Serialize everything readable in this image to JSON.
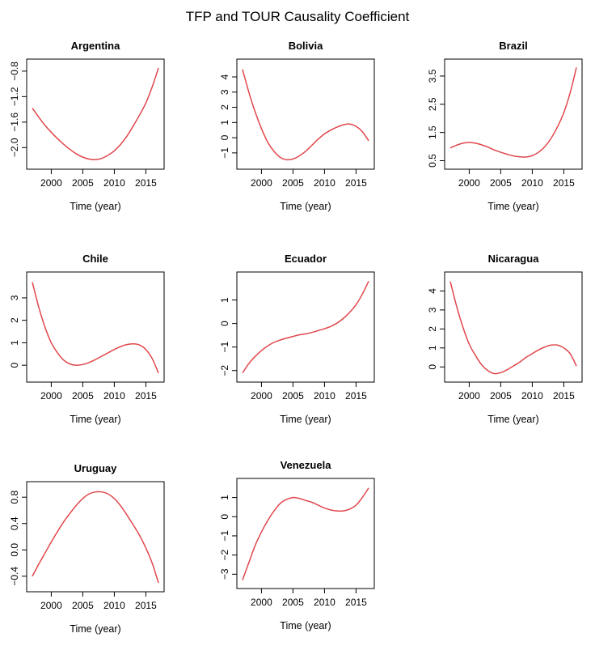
{
  "title": "TFP and TOUR Causality Coefficient",
  "colors": {
    "series": "#e0474c",
    "axis": "#000000"
  },
  "chart_data": [
    {
      "type": "line",
      "title": "Argentina",
      "xlabel": "Time (year)",
      "ylabel": "",
      "xlim": [
        1997,
        2017
      ],
      "ylim": [
        -2.25,
        -0.7
      ],
      "xticks": [
        2000,
        2005,
        2010,
        2015
      ],
      "xtick_labels": [
        "2000",
        "2005",
        "2010",
        "2015"
      ],
      "yticks": [
        -2.0,
        -1.6,
        -1.2,
        -0.8
      ],
      "ytick_labels": [
        "−2.0",
        "−1.6",
        "−1.2",
        "−0.8"
      ],
      "series": [
        {
          "x": [
            1997,
            1998,
            1999,
            2000,
            2001,
            2002,
            2003,
            2004,
            2005,
            2006,
            2007,
            2008,
            2009,
            2010,
            2011,
            2012,
            2013,
            2014,
            2015,
            2016,
            2017
          ],
          "values": [
            -1.38,
            -1.52,
            -1.65,
            -1.76,
            -1.86,
            -1.95,
            -2.03,
            -2.1,
            -2.15,
            -2.18,
            -2.19,
            -2.17,
            -2.12,
            -2.05,
            -1.95,
            -1.82,
            -1.66,
            -1.49,
            -1.3,
            -1.05,
            -0.75
          ]
        }
      ]
    },
    {
      "type": "line",
      "title": "Bolivia",
      "xlabel": "Time (year)",
      "ylabel": "",
      "xlim": [
        1997,
        2017
      ],
      "ylim": [
        -1.7,
        4.8
      ],
      "xticks": [
        2000,
        2005,
        2010,
        2015
      ],
      "xtick_labels": [
        "2000",
        "2005",
        "2010",
        "2015"
      ],
      "yticks": [
        -1,
        0,
        1,
        2,
        3,
        4
      ],
      "ytick_labels": [
        "−1",
        "0",
        "1",
        "2",
        "3",
        "4"
      ],
      "series": [
        {
          "x": [
            1997,
            1998,
            1999,
            2000,
            2001,
            2002,
            2003,
            2004,
            2005,
            2006,
            2007,
            2008,
            2009,
            2010,
            2011,
            2012,
            2013,
            2014,
            2015,
            2016,
            2017
          ],
          "values": [
            4.5,
            3.0,
            1.7,
            0.6,
            -0.3,
            -0.9,
            -1.3,
            -1.45,
            -1.4,
            -1.2,
            -0.9,
            -0.5,
            -0.1,
            0.25,
            0.5,
            0.7,
            0.85,
            0.9,
            0.75,
            0.4,
            -0.2
          ]
        }
      ]
    },
    {
      "type": "line",
      "title": "Brazil",
      "xlabel": "Time (year)",
      "ylabel": "",
      "xlim": [
        1997,
        2017
      ],
      "ylim": [
        0.4,
        3.9
      ],
      "xticks": [
        2000,
        2005,
        2010,
        2015
      ],
      "xtick_labels": [
        "2000",
        "2005",
        "2010",
        "2015"
      ],
      "yticks": [
        0.5,
        1.5,
        2.5,
        3.5
      ],
      "ytick_labels": [
        "0.5",
        "1.5",
        "2.5",
        "3.5"
      ],
      "series": [
        {
          "x": [
            1997,
            1998,
            1999,
            2000,
            2001,
            2002,
            2003,
            2004,
            2005,
            2006,
            2007,
            2008,
            2009,
            2010,
            2011,
            2012,
            2013,
            2014,
            2015,
            2016,
            2017
          ],
          "values": [
            0.95,
            1.05,
            1.12,
            1.15,
            1.12,
            1.06,
            0.98,
            0.88,
            0.8,
            0.73,
            0.67,
            0.64,
            0.63,
            0.68,
            0.8,
            1.0,
            1.3,
            1.7,
            2.2,
            2.9,
            3.8
          ]
        }
      ]
    },
    {
      "type": "line",
      "title": "Chile",
      "xlabel": "Time (year)",
      "ylabel": "",
      "xlim": [
        1997,
        2017
      ],
      "ylim": [
        -0.5,
        3.9
      ],
      "xticks": [
        2000,
        2005,
        2010,
        2015
      ],
      "xtick_labels": [
        "2000",
        "2005",
        "2010",
        "2015"
      ],
      "yticks": [
        0,
        1,
        2,
        3
      ],
      "ytick_labels": [
        "0",
        "1",
        "2",
        "3"
      ],
      "series": [
        {
          "x": [
            1997,
            1998,
            1999,
            2000,
            2001,
            2002,
            2003,
            2004,
            2005,
            2006,
            2007,
            2008,
            2009,
            2010,
            2011,
            2012,
            2013,
            2014,
            2015,
            2016,
            2017
          ],
          "values": [
            3.7,
            2.6,
            1.7,
            1.0,
            0.55,
            0.22,
            0.05,
            0.0,
            0.03,
            0.12,
            0.25,
            0.4,
            0.55,
            0.7,
            0.83,
            0.92,
            0.95,
            0.9,
            0.7,
            0.3,
            -0.35
          ]
        }
      ]
    },
    {
      "type": "line",
      "title": "Ecuador",
      "xlabel": "Time (year)",
      "ylabel": "",
      "xlim": [
        1997,
        2017
      ],
      "ylim": [
        -2.25,
        1.95
      ],
      "xticks": [
        2000,
        2005,
        2010,
        2015
      ],
      "xtick_labels": [
        "2000",
        "2005",
        "2010",
        "2015"
      ],
      "yticks": [
        -2,
        -1,
        0,
        1
      ],
      "ytick_labels": [
        "−2",
        "−1",
        "0",
        "1"
      ],
      "series": [
        {
          "x": [
            1997,
            1998,
            1999,
            2000,
            2001,
            2002,
            2003,
            2004,
            2005,
            2006,
            2007,
            2008,
            2009,
            2010,
            2011,
            2012,
            2013,
            2014,
            2015,
            2016,
            2017
          ],
          "values": [
            -2.1,
            -1.7,
            -1.4,
            -1.15,
            -0.95,
            -0.8,
            -0.7,
            -0.62,
            -0.55,
            -0.48,
            -0.44,
            -0.38,
            -0.3,
            -0.22,
            -0.12,
            0.02,
            0.22,
            0.48,
            0.8,
            1.25,
            1.8
          ]
        }
      ]
    },
    {
      "type": "line",
      "title": "Nicaragua",
      "xlabel": "Time (year)",
      "ylabel": "",
      "xlim": [
        1997,
        2017
      ],
      "ylim": [
        -0.5,
        4.7
      ],
      "xticks": [
        2000,
        2005,
        2010,
        2015
      ],
      "xtick_labels": [
        "2000",
        "2005",
        "2010",
        "2015"
      ],
      "yticks": [
        0,
        1,
        2,
        3,
        4
      ],
      "ytick_labels": [
        "0",
        "1",
        "2",
        "3",
        "4"
      ],
      "series": [
        {
          "x": [
            1997,
            1998,
            1999,
            2000,
            2001,
            2002,
            2003,
            2004,
            2005,
            2006,
            2007,
            2008,
            2009,
            2010,
            2011,
            2012,
            2013,
            2014,
            2015,
            2016,
            2017
          ],
          "values": [
            4.5,
            3.2,
            2.1,
            1.2,
            0.6,
            0.1,
            -0.2,
            -0.35,
            -0.3,
            -0.15,
            0.05,
            0.25,
            0.5,
            0.7,
            0.9,
            1.05,
            1.15,
            1.15,
            1.0,
            0.7,
            0.05
          ]
        }
      ]
    },
    {
      "type": "line",
      "title": "Uruguay",
      "xlabel": "Time (year)",
      "ylabel": "",
      "xlim": [
        1997,
        2017
      ],
      "ylim": [
        -0.55,
        0.95
      ],
      "xticks": [
        2000,
        2005,
        2010,
        2015
      ],
      "xtick_labels": [
        "2000",
        "2005",
        "2010",
        "2015"
      ],
      "yticks": [
        -0.4,
        0.0,
        0.4,
        0.8
      ],
      "ytick_labels": [
        "−0.4",
        "0.0",
        "0.4",
        "0.8"
      ],
      "series": [
        {
          "x": [
            1997,
            1998,
            1999,
            2000,
            2001,
            2002,
            2003,
            2004,
            2005,
            2006,
            2007,
            2008,
            2009,
            2010,
            2011,
            2012,
            2013,
            2014,
            2015,
            2016,
            2017
          ],
          "values": [
            -0.4,
            -0.22,
            -0.05,
            0.12,
            0.28,
            0.43,
            0.56,
            0.68,
            0.78,
            0.85,
            0.88,
            0.88,
            0.85,
            0.78,
            0.67,
            0.53,
            0.38,
            0.22,
            0.03,
            -0.2,
            -0.5
          ]
        }
      ]
    },
    {
      "type": "line",
      "title": "Venezuela",
      "xlabel": "Time (year)",
      "ylabel": "",
      "xlim": [
        1997,
        2017
      ],
      "ylim": [
        -3.45,
        1.7
      ],
      "xticks": [
        2000,
        2005,
        2010,
        2015
      ],
      "xtick_labels": [
        "2000",
        "2005",
        "2010",
        "2015"
      ],
      "yticks": [
        -3,
        -2,
        -1,
        0,
        1
      ],
      "ytick_labels": [
        "−3",
        "−2",
        "−1",
        "0",
        "1"
      ],
      "series": [
        {
          "x": [
            1997,
            1998,
            1999,
            2000,
            2001,
            2002,
            2003,
            2004,
            2005,
            2006,
            2007,
            2008,
            2009,
            2010,
            2011,
            2012,
            2013,
            2014,
            2015,
            2016,
            2017
          ],
          "values": [
            -3.3,
            -2.4,
            -1.5,
            -0.8,
            -0.2,
            0.3,
            0.7,
            0.9,
            1.0,
            0.95,
            0.85,
            0.75,
            0.6,
            0.45,
            0.35,
            0.3,
            0.3,
            0.4,
            0.6,
            1.0,
            1.5
          ]
        }
      ]
    }
  ]
}
